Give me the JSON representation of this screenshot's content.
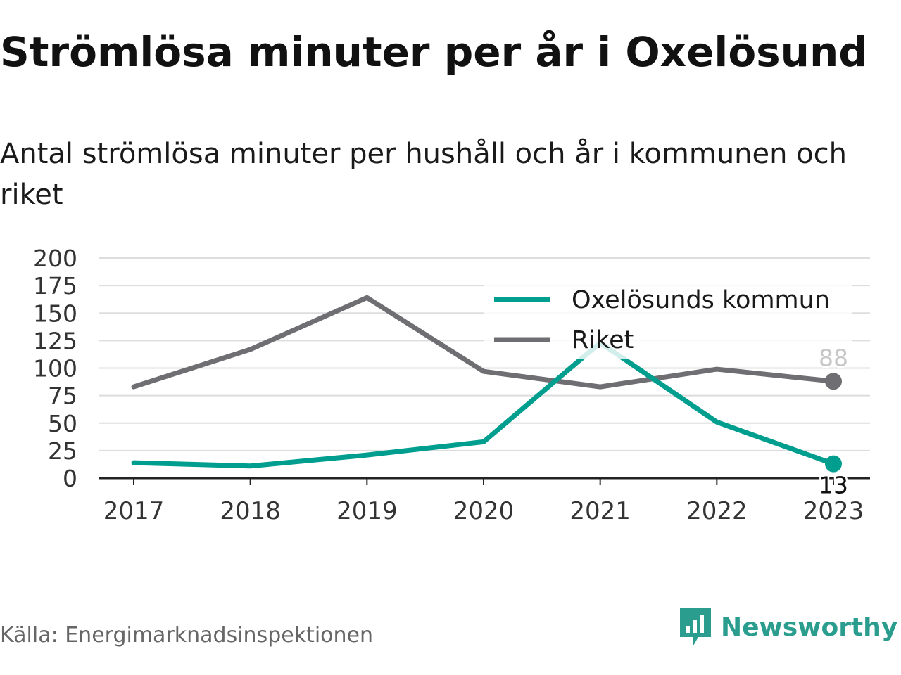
{
  "header": {
    "title": "Strömlösa minuter per år i Oxelösund",
    "subtitle": "Antal strömlösa minuter per hushåll och år i kommunen och riket"
  },
  "footer": {
    "source": "Källa: Energimarknadsinspektionen",
    "brand": "Newsworthy"
  },
  "colors": {
    "kommun": "#009e8e",
    "riket": "#6f6f73",
    "grid": "#dddddd",
    "axis": "#222222",
    "brand": "#2a9d8f"
  },
  "chart_data": {
    "type": "line",
    "categories": [
      "2017",
      "2018",
      "2019",
      "2020",
      "2021",
      "2022",
      "2023"
    ],
    "ylim": [
      0,
      200
    ],
    "yticks": [
      "0",
      "25",
      "50",
      "75",
      "100",
      "125",
      "150",
      "175",
      "200"
    ],
    "grid": true,
    "legend_position": "top-right",
    "series": [
      {
        "name": "Oxelösunds kommun",
        "values": [
          14,
          11,
          21,
          33,
          123,
          51,
          13
        ],
        "end_label": "13"
      },
      {
        "name": "Riket",
        "values": [
          83,
          117,
          164,
          97,
          83,
          99,
          88
        ],
        "end_label": "88"
      }
    ]
  }
}
